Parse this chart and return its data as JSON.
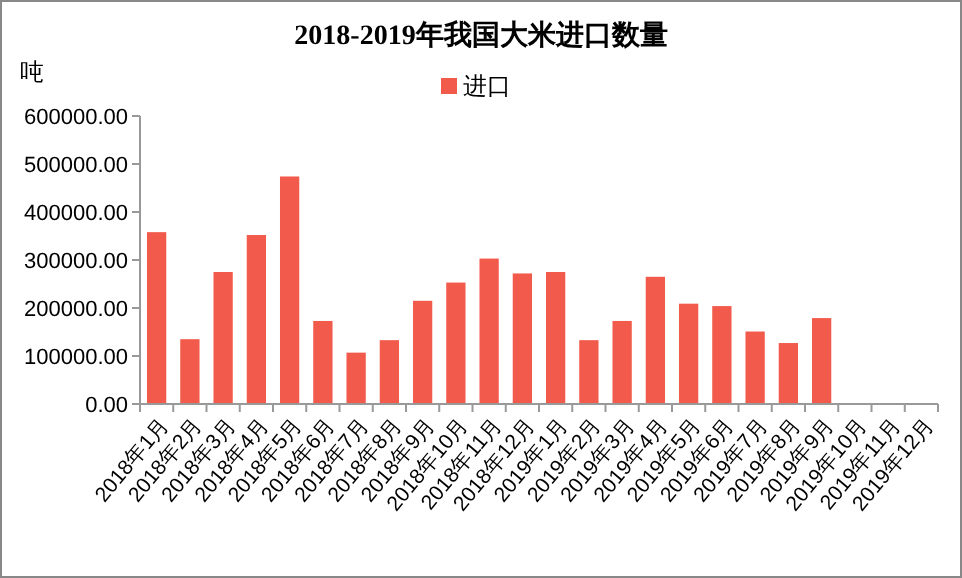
{
  "chart_data": {
    "type": "bar",
    "title": "2018-2019年我国大米进口数量",
    "ylabel": "吨",
    "categories": [
      "2018年1月",
      "2018年2月",
      "2018年3月",
      "2018年4月",
      "2018年5月",
      "2018年6月",
      "2018年7月",
      "2018年8月",
      "2018年9月",
      "2018年10月",
      "2018年11月",
      "2018年12月",
      "2019年1月",
      "2019年2月",
      "2019年3月",
      "2019年4月",
      "2019年5月",
      "2019年6月",
      "2019年7月",
      "2019年8月",
      "2019年9月",
      "2019年10月",
      "2019年11月",
      "2019年12月"
    ],
    "series": [
      {
        "name": "进口",
        "color": "#f25a4b",
        "values": [
          358000,
          135000,
          275000,
          352000,
          474000,
          173000,
          107000,
          133000,
          215000,
          253000,
          303000,
          272000,
          275000,
          133000,
          173000,
          265000,
          209000,
          204000,
          151000,
          127000,
          179000,
          null,
          null,
          null
        ]
      }
    ],
    "ylim": [
      0,
      600000
    ],
    "yticks": [
      {
        "value": 0,
        "label": "0.00"
      },
      {
        "value": 100000,
        "label": "100000.00"
      },
      {
        "value": 200000,
        "label": "200000.00"
      },
      {
        "value": 300000,
        "label": "300000.00"
      },
      {
        "value": 400000,
        "label": "400000.00"
      },
      {
        "value": 500000,
        "label": "500000.00"
      },
      {
        "value": 600000,
        "label": "600000.00"
      }
    ],
    "grid": false,
    "legend": "top"
  }
}
